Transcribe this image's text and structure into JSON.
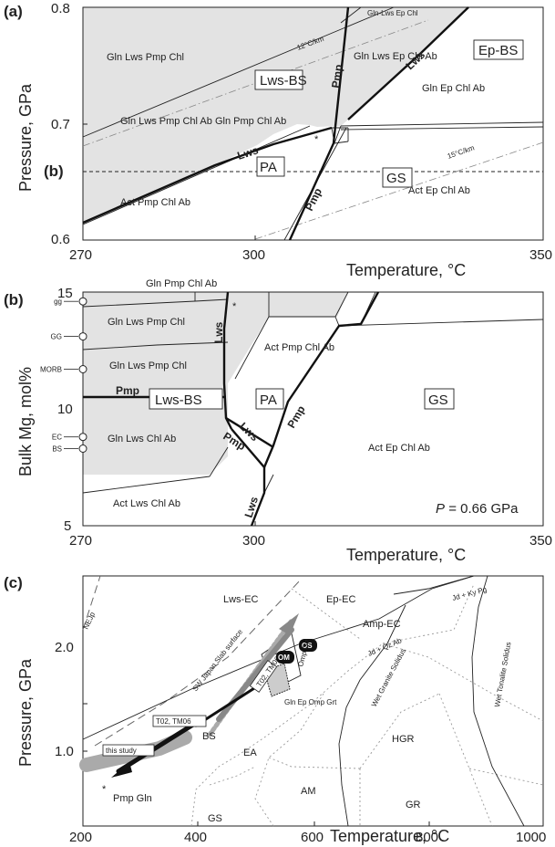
{
  "chart_data": [
    {
      "panel": "(a)",
      "type": "line",
      "title": "",
      "xlabel": "Temperature, °C",
      "ylabel": "Pressure, GPa",
      "xlim": [
        270,
        350
      ],
      "ylim": [
        0.6,
        0.8
      ],
      "x_ticks": [
        "270",
        "300",
        "350"
      ],
      "y_ticks": [
        "0.6",
        "0.7",
        "0.8"
      ],
      "section_marker": {
        "label": "(b)",
        "y": 0.66
      },
      "gradients": [
        {
          "label": "12°C/km",
          "points": [
            [
              270,
              0.682
            ],
            [
              330,
              0.788
            ]
          ]
        },
        {
          "label": "15°C/km",
          "points": [
            [
              300,
              0.6
            ],
            [
              350,
              0.683
            ]
          ]
        }
      ],
      "boundaries": [
        {
          "name": "Lws",
          "points": [
            [
              270,
              0.615
            ],
            [
              300,
              0.657
            ],
            [
              318,
              0.683
            ],
            [
              322,
              0.693
            ]
          ]
        },
        {
          "name": "Pmp",
          "points": [
            [
              310,
              0.6
            ],
            [
              318,
              0.683
            ],
            [
              321,
              0.695
            ],
            [
              328,
              0.8
            ]
          ]
        },
        {
          "name": "Lws",
          "points": [
            [
              321,
              0.695
            ],
            [
              336,
              0.745
            ],
            [
              350,
              0.8
            ]
          ]
        },
        {
          "name": "",
          "points": [
            [
              270,
              0.687
            ],
            [
              324,
              0.8
            ]
          ]
        },
        {
          "name": "",
          "points": [
            [
              324,
              0.695
            ],
            [
              350,
              0.7
            ]
          ]
        }
      ],
      "facies_boxes": [
        "Lws-BS",
        "Ep-BS",
        "PA",
        "GS"
      ],
      "fields": [
        "Gln Lws Pmp Chl",
        "Gln Lws Pmp Chl Ab",
        "Gln Pmp Chl Ab",
        "Gln Lws Ep Chl Ab",
        "Gln-Lws Ep Chl",
        "Gln Ep Chl Ab",
        "Act Pmp Chl Ab",
        "Act Ep Chl Ab"
      ]
    },
    {
      "panel": "(b)",
      "type": "line",
      "title": "",
      "xlabel": "Temperature, °C",
      "ylabel": "Bulk Mg, mol%",
      "xlim": [
        270,
        350
      ],
      "ylim": [
        5,
        15
      ],
      "x_ticks": [
        "270",
        "300",
        "350"
      ],
      "y_ticks": [
        "5",
        "10",
        "15"
      ],
      "pressure_label": "= 0.66 GPa",
      "bulk_compositions": [
        {
          "label": "gg",
          "y": 14.6
        },
        {
          "label": "GG",
          "y": 13.1
        },
        {
          "label": "MORB",
          "y": 11.7
        },
        {
          "label": "EC",
          "y": 8.8
        },
        {
          "label": "BS",
          "y": 8.3
        }
      ],
      "boundaries": [
        {
          "name": "Pmp",
          "points": [
            [
              270,
              11.2
            ],
            [
              290,
              11.2
            ]
          ]
        },
        {
          "name": "Lws",
          "points": [
            [
              292,
              15
            ],
            [
              290,
              12.5
            ],
            [
              290.5,
              9.5
            ],
            [
              292,
              8
            ]
          ]
        },
        {
          "name": "Pmp",
          "points": [
            [
              291,
              9.5
            ],
            [
              300,
              7.5
            ]
          ]
        },
        {
          "name": "Lws",
          "points": [
            [
              292,
              9.8
            ],
            [
              300,
              7.2
            ]
          ]
        },
        {
          "name": "Pmp",
          "points": [
            [
              300,
              7
            ],
            [
              306,
              9
            ],
            [
              313,
              12.5
            ]
          ]
        },
        {
          "name": "Lws",
          "points": [
            [
              300,
              7.2
            ],
            [
              297,
              5
            ]
          ]
        }
      ],
      "facies_boxes": [
        "Lws-BS",
        "PA",
        "GS"
      ],
      "fields": [
        "Gln Pmp Chl Ab",
        "Gln Lws Pmp Chl",
        "Gln Lws Pmp Chl",
        "Gln Lws Chl Ab",
        "Act Lws Chl Ab",
        "Act Pmp Chl Ab",
        "Act Ep Chl Ab"
      ]
    },
    {
      "panel": "(c)",
      "type": "line",
      "title": "",
      "xlabel": "Temperature, °C",
      "ylabel": "Pressure, GPa",
      "xlim": [
        200,
        1000
      ],
      "ylim": [
        0.5,
        2.5
      ],
      "x_ticks": [
        "200",
        "400",
        "600",
        "800",
        "1000"
      ],
      "y_ticks": [
        "1.0",
        "2.0"
      ],
      "curves": [
        {
          "label": "NEJp",
          "points": [
            [
              200,
              1.82
            ],
            [
              235,
              2.5
            ]
          ]
        },
        {
          "label": "SW Japan Slab surface",
          "points": [
            [
              225,
              1.0
            ],
            [
              300,
              1.45
            ],
            [
              380,
              1.85
            ],
            [
              470,
              2.5
            ]
          ]
        },
        {
          "label": "Jd + Qz Ab",
          "points": [
            [
              200,
              0.95
            ],
            [
              500,
              1.55
            ],
            [
              700,
              2.02
            ],
            [
              800,
              2.24
            ]
          ]
        },
        {
          "label": "Jd + Ky Pg",
          "points": [
            [
              650,
              2.25
            ],
            [
              800,
              2.45
            ]
          ]
        },
        {
          "label": "Wet Granite Solidus",
          "points": [
            [
              700,
              2.2
            ],
            [
              680,
              1.7
            ],
            [
              650,
              1.3
            ],
            [
              632,
              1.0
            ],
            [
              630,
              0.7
            ],
            [
              640,
              0.5
            ]
          ]
        },
        {
          "label": "Wet Tonalite Solidus",
          "points": [
            [
              880,
              2.5
            ],
            [
              858,
              2.0
            ],
            [
              845,
              1.5
            ],
            [
              858,
              1.0
            ],
            [
              910,
              0.5
            ]
          ]
        }
      ],
      "paths": [
        {
          "label": "this study",
          "points": [
            [
              430,
              1.12
            ],
            [
              265,
              0.7
            ]
          ]
        },
        {
          "label": "T02, TM06",
          "points": [
            [
              565,
              1.35
            ],
            [
              375,
              0.95
            ]
          ]
        },
        {
          "label": "",
          "points": [
            [
              600,
              2.35
            ],
            [
              430,
              1.35
            ]
          ]
        },
        {
          "label": "",
          "points": [
            [
              200,
              0.6
            ],
            [
              430,
              0.86
            ]
          ]
        }
      ],
      "facies_labels": [
        "Lws-EC",
        "Ep-EC",
        "Amp-EC",
        "BS",
        "EA",
        "AM",
        "GS",
        "HGR",
        "GR"
      ],
      "markers": [
        "OS",
        "OM",
        "T02, TM06"
      ],
      "field_labels": [
        "Gln Ep Omp Grt",
        "Omp Grt"
      ],
      "point_label": "Pmp Gln"
    }
  ]
}
